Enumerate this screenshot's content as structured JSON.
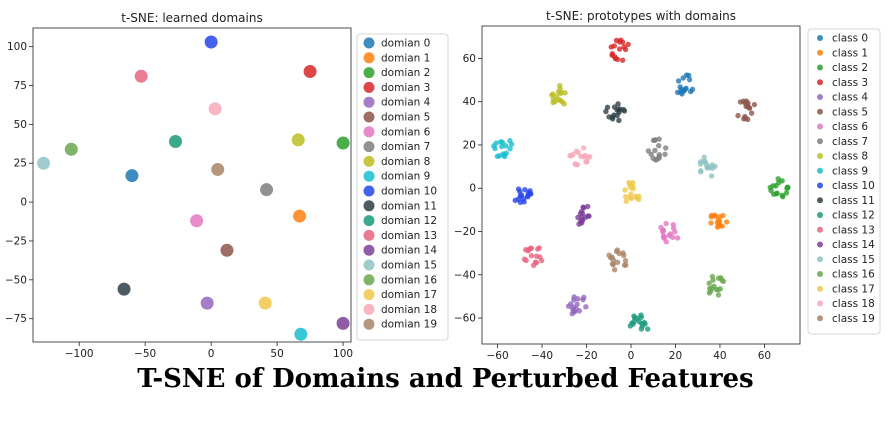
{
  "caption": "T-SNE of Domains and Perturbed Features",
  "chart_data": [
    {
      "type": "scatter",
      "title": "t-SNE: learned domains",
      "xlim": [
        -135,
        106
      ],
      "ylim": [
        -90,
        112
      ],
      "xticks": [
        -100,
        -50,
        0,
        50,
        100
      ],
      "yticks": [
        -75,
        -50,
        -25,
        0,
        25,
        50,
        75,
        100
      ],
      "legend_position": "right-outside",
      "series": [
        {
          "name": "domian 0",
          "color": "#1f77b4",
          "points": [
            [
              -60,
              17
            ]
          ]
        },
        {
          "name": "domian 1",
          "color": "#ff7f0e",
          "points": [
            [
              67,
              -9
            ]
          ]
        },
        {
          "name": "domian 2",
          "color": "#2ca02c",
          "points": [
            [
              100,
              38
            ]
          ]
        },
        {
          "name": "domian 3",
          "color": "#d62728",
          "points": [
            [
              75,
              84
            ]
          ]
        },
        {
          "name": "domian 4",
          "color": "#9467bd",
          "points": [
            [
              -3,
              -65
            ]
          ]
        },
        {
          "name": "domian 5",
          "color": "#8c564b",
          "points": [
            [
              12,
              -31
            ]
          ]
        },
        {
          "name": "domian 6",
          "color": "#e377c2",
          "points": [
            [
              -11,
              -12
            ]
          ]
        },
        {
          "name": "domian 7",
          "color": "#7f7f7f",
          "points": [
            [
              42,
              8
            ]
          ]
        },
        {
          "name": "domian 8",
          "color": "#bcbd22",
          "points": [
            [
              66,
              40
            ]
          ]
        },
        {
          "name": "domian 9",
          "color": "#17becf",
          "points": [
            [
              68,
              -85
            ]
          ]
        },
        {
          "name": "domian 10",
          "color": "#2546e8",
          "points": [
            [
              0,
              103
            ]
          ]
        },
        {
          "name": "domian 11",
          "color": "#2f3e46",
          "points": [
            [
              -66,
              -56
            ]
          ]
        },
        {
          "name": "domian 12",
          "color": "#1a9a7a",
          "points": [
            [
              -27,
              39
            ]
          ]
        },
        {
          "name": "domian 13",
          "color": "#e8637f",
          "points": [
            [
              -53,
              81
            ]
          ]
        },
        {
          "name": "domian 14",
          "color": "#7b3f98",
          "points": [
            [
              100,
              -78
            ]
          ]
        },
        {
          "name": "domian 15",
          "color": "#8fc3c3",
          "points": [
            [
              -127,
              25
            ]
          ]
        },
        {
          "name": "domian 16",
          "color": "#6aa84f",
          "points": [
            [
              -106,
              34
            ]
          ]
        },
        {
          "name": "domian 17",
          "color": "#f1c84a",
          "points": [
            [
              41,
              -65
            ]
          ]
        },
        {
          "name": "domian 18",
          "color": "#f7a8b8",
          "points": [
            [
              3,
              60
            ]
          ]
        },
        {
          "name": "domian 19",
          "color": "#a98467",
          "points": [
            [
              5,
              21
            ]
          ]
        }
      ]
    },
    {
      "type": "scatter",
      "title": "t-SNE: prototypes with domains",
      "xlim": [
        -67,
        76
      ],
      "ylim": [
        -72,
        75
      ],
      "xticks": [
        -60,
        -40,
        -20,
        0,
        20,
        40,
        60
      ],
      "yticks": [
        -60,
        -40,
        -20,
        0,
        20,
        40,
        60
      ],
      "legend_position": "right-outside",
      "series": [
        {
          "name": "class 0",
          "color": "#1f77b4",
          "center": [
            24,
            48
          ]
        },
        {
          "name": "class 1",
          "color": "#ff7f0e",
          "center": [
            40,
            -15
          ]
        },
        {
          "name": "class 2",
          "color": "#2ca02c",
          "center": [
            67,
            0
          ]
        },
        {
          "name": "class 3",
          "color": "#d62728",
          "center": [
            -5,
            64
          ]
        },
        {
          "name": "class 4",
          "color": "#9467bd",
          "center": [
            -24,
            -54
          ]
        },
        {
          "name": "class 5",
          "color": "#8c564b",
          "center": [
            52,
            36
          ]
        },
        {
          "name": "class 6",
          "color": "#e377c2",
          "center": [
            17,
            -21
          ]
        },
        {
          "name": "class 7",
          "color": "#7f7f7f",
          "center": [
            12,
            18
          ]
        },
        {
          "name": "class 8",
          "color": "#bcbd22",
          "center": [
            -32,
            43
          ]
        },
        {
          "name": "class 9",
          "color": "#17becf",
          "center": [
            -58,
            19
          ]
        },
        {
          "name": "class 10",
          "color": "#2546e8",
          "center": [
            -49,
            -2
          ]
        },
        {
          "name": "class 11",
          "color": "#2f3e46",
          "center": [
            -7,
            35
          ]
        },
        {
          "name": "class 12",
          "color": "#1a9a7a",
          "center": [
            4,
            -63
          ]
        },
        {
          "name": "class 13",
          "color": "#e8637f",
          "center": [
            -44,
            -31
          ]
        },
        {
          "name": "class 14",
          "color": "#7b3f98",
          "center": [
            -22,
            -12
          ]
        },
        {
          "name": "class 15",
          "color": "#8fc3c3",
          "center": [
            35,
            10
          ]
        },
        {
          "name": "class 16",
          "color": "#6aa84f",
          "center": [
            38,
            -45
          ]
        },
        {
          "name": "class 17",
          "color": "#f1c84a",
          "center": [
            0,
            -2
          ]
        },
        {
          "name": "class 18",
          "color": "#f7a8b8",
          "center": [
            -23,
            15
          ]
        },
        {
          "name": "class 19",
          "color": "#a98467",
          "center": [
            -6,
            -33
          ]
        }
      ]
    }
  ]
}
